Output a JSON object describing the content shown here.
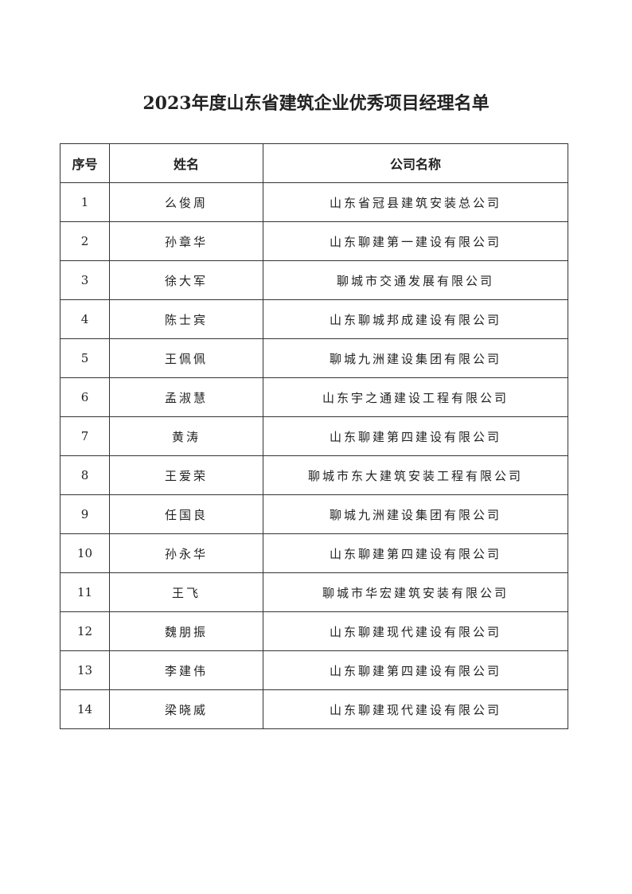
{
  "document": {
    "title": "2023年度山东省建筑企业优秀项目经理名单",
    "table": {
      "headers": [
        "序号",
        "姓名",
        "公司名称"
      ],
      "rows": [
        {
          "no": "1",
          "name": "么俊周",
          "company": "山东省冠县建筑安装总公司"
        },
        {
          "no": "2",
          "name": "孙章华",
          "company": "山东聊建第一建设有限公司"
        },
        {
          "no": "3",
          "name": "徐大军",
          "company": "聊城市交通发展有限公司"
        },
        {
          "no": "4",
          "name": "陈士宾",
          "company": "山东聊城邦成建设有限公司"
        },
        {
          "no": "5",
          "name": "王佩佩",
          "company": "聊城九洲建设集团有限公司"
        },
        {
          "no": "6",
          "name": "孟淑慧",
          "company": "山东宇之通建设工程有限公司"
        },
        {
          "no": "7",
          "name": "黄涛",
          "company": "山东聊建第四建设有限公司"
        },
        {
          "no": "8",
          "name": "王爱荣",
          "company": "聊城市东大建筑安装工程有限公司"
        },
        {
          "no": "9",
          "name": "任国良",
          "company": "聊城九洲建设集团有限公司"
        },
        {
          "no": "10",
          "name": "孙永华",
          "company": "山东聊建第四建设有限公司"
        },
        {
          "no": "11",
          "name": "王飞",
          "company": "聊城市华宏建筑安装有限公司"
        },
        {
          "no": "12",
          "name": "魏朋振",
          "company": "山东聊建现代建设有限公司"
        },
        {
          "no": "13",
          "name": "李建伟",
          "company": "山东聊建第四建设有限公司"
        },
        {
          "no": "14",
          "name": "梁晓威",
          "company": "山东聊建现代建设有限公司"
        }
      ]
    }
  }
}
